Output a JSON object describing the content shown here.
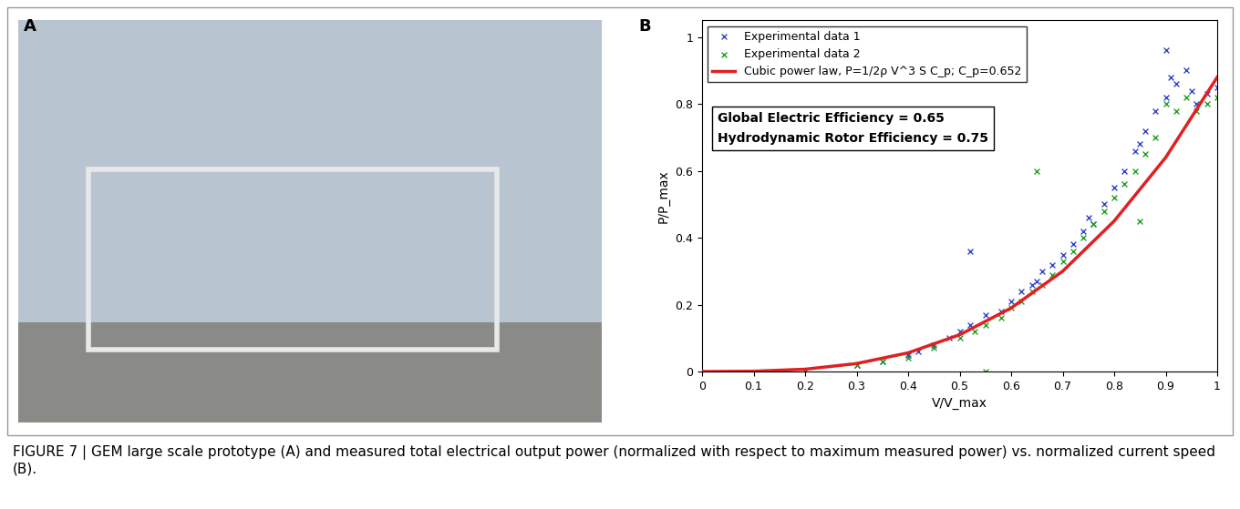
{
  "panel_labels": [
    "A",
    "B"
  ],
  "caption": "FIGURE 7 | GEM large scale prototype (A) and measured total electrical output power (normalized with respect to maximum measured power) vs. normalized current speed (B).",
  "chart_data": {
    "type": "scatter",
    "x_label": "V/V_max",
    "y_label": "P/P_max",
    "xlim": [
      0,
      1
    ],
    "ylim": [
      0,
      1.05
    ],
    "xticks": [
      0,
      0.1,
      0.2,
      0.3,
      0.4,
      0.5,
      0.6,
      0.7,
      0.8,
      0.9,
      1
    ],
    "yticks": [
      0,
      0.2,
      0.4,
      0.6,
      0.8,
      1
    ],
    "legend": "upper left",
    "annotations": [
      "Global Electric Efficiency = 0.65",
      "Hydrodynamic Rotor Efficiency = 0.75"
    ],
    "series": [
      {
        "name": "Experimental data 1",
        "type": "scatter",
        "color": "#3344cc",
        "marker": "x",
        "x": [
          0.3,
          0.35,
          0.4,
          0.42,
          0.45,
          0.48,
          0.5,
          0.52,
          0.52,
          0.55,
          0.58,
          0.6,
          0.62,
          0.64,
          0.65,
          0.66,
          0.68,
          0.7,
          0.72,
          0.74,
          0.75,
          0.76,
          0.78,
          0.8,
          0.82,
          0.84,
          0.85,
          0.86,
          0.88,
          0.9,
          0.9,
          0.91,
          0.92,
          0.94,
          0.95,
          0.96,
          0.98,
          1.0
        ],
        "values": [
          0.02,
          0.03,
          0.05,
          0.06,
          0.08,
          0.1,
          0.12,
          0.14,
          0.36,
          0.17,
          0.18,
          0.21,
          0.24,
          0.26,
          0.27,
          0.3,
          0.32,
          0.35,
          0.38,
          0.42,
          0.46,
          0.44,
          0.5,
          0.55,
          0.6,
          0.66,
          0.68,
          0.72,
          0.78,
          0.82,
          0.96,
          0.88,
          0.86,
          0.9,
          0.84,
          0.8,
          0.83,
          0.85
        ]
      },
      {
        "name": "Experimental data 2",
        "type": "scatter",
        "color": "#22a022",
        "marker": "x",
        "x": [
          0.2,
          0.3,
          0.35,
          0.4,
          0.45,
          0.5,
          0.53,
          0.55,
          0.55,
          0.58,
          0.6,
          0.62,
          0.64,
          0.65,
          0.66,
          0.68,
          0.7,
          0.72,
          0.74,
          0.76,
          0.78,
          0.8,
          0.82,
          0.84,
          0.85,
          0.86,
          0.88,
          0.9,
          0.92,
          0.94,
          0.96,
          0.98,
          1.0
        ],
        "values": [
          0.0,
          0.02,
          0.03,
          0.04,
          0.07,
          0.1,
          0.12,
          0.0,
          0.14,
          0.16,
          0.19,
          0.21,
          0.24,
          0.6,
          0.26,
          0.29,
          0.33,
          0.36,
          0.4,
          0.44,
          0.48,
          0.52,
          0.56,
          0.6,
          0.45,
          0.65,
          0.7,
          0.8,
          0.78,
          0.82,
          0.78,
          0.8,
          0.82
        ]
      },
      {
        "name": "Cubic power law, P=1/2ρ V^3 S C_p; C_p=0.652",
        "type": "line",
        "color": "#e02020",
        "line_style": "solid",
        "x": [
          0,
          0.1,
          0.2,
          0.3,
          0.4,
          0.5,
          0.6,
          0.7,
          0.8,
          0.9,
          1.0
        ],
        "values": [
          0,
          0.001,
          0.007,
          0.024,
          0.056,
          0.11,
          0.19,
          0.3,
          0.45,
          0.64,
          0.88
        ]
      }
    ]
  }
}
